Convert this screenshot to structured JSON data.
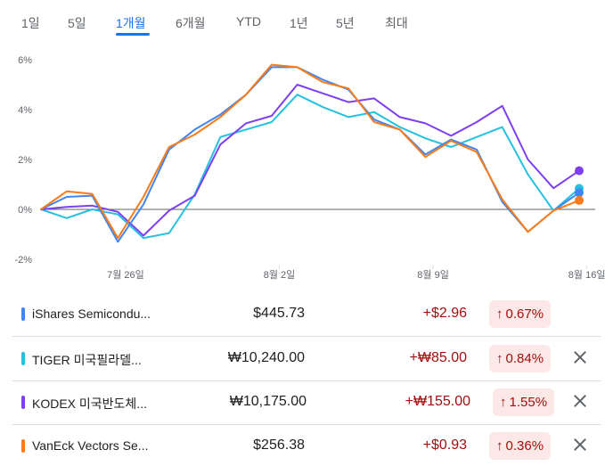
{
  "tabs": [
    {
      "label": "1일",
      "active": false
    },
    {
      "label": "5일",
      "active": false
    },
    {
      "label": "1개월",
      "active": true
    },
    {
      "label": "6개월",
      "active": false
    },
    {
      "label": "YTD",
      "active": false
    },
    {
      "label": "1년",
      "active": false
    },
    {
      "label": "5년",
      "active": false
    },
    {
      "label": "최대",
      "active": false
    }
  ],
  "chart_data": {
    "type": "line",
    "ylim": [
      -2,
      6
    ],
    "yticks": [
      6,
      4,
      2,
      0,
      -2
    ],
    "ytick_labels": [
      "6%",
      "4%",
      "2%",
      "0%",
      "-2%"
    ],
    "xtick_labels": [
      "7월 26일",
      "8월 2일",
      "8월 9일",
      "8월 16일"
    ],
    "xtick_index": [
      3.3,
      9.3,
      15.3,
      21.3
    ],
    "zero_line": true,
    "series": [
      {
        "name": "iShares Semiconductor ETF",
        "color": "#4285f4",
        "values": [
          0,
          0.5,
          0.55,
          -1.3,
          0.2,
          2.4,
          3.2,
          3.8,
          4.6,
          5.7,
          5.7,
          5.2,
          4.8,
          3.6,
          3.2,
          2.2,
          2.8,
          2.4,
          0.3,
          -0.9,
          -0.05,
          0.67
        ]
      },
      {
        "name": "TIGER 미국필라델피아반도체나스닥",
        "color": "#24c1e0",
        "values": [
          0,
          -0.35,
          0,
          -0.2,
          -1.15,
          -0.95,
          0.6,
          2.9,
          3.2,
          3.5,
          4.6,
          4.1,
          3.7,
          3.9,
          3.3,
          2.85,
          2.5,
          2.9,
          3.3,
          1.4,
          -0.05,
          0.84
        ]
      },
      {
        "name": "KODEX 미국반도체MV",
        "color": "#7e3ff2",
        "values": [
          0,
          0.1,
          0.15,
          -0.1,
          -1.05,
          -0.05,
          0.55,
          2.6,
          3.45,
          3.75,
          5.0,
          4.65,
          4.3,
          4.45,
          3.7,
          3.45,
          2.95,
          3.5,
          4.15,
          2.0,
          0.85,
          1.55
        ]
      },
      {
        "name": "VanEck Vectors Semiconductor ETF",
        "color": "#fa7b17",
        "values": [
          0,
          0.72,
          0.62,
          -1.15,
          0.5,
          2.5,
          3.0,
          3.7,
          4.6,
          5.8,
          5.7,
          5.1,
          4.85,
          3.5,
          3.2,
          2.1,
          2.75,
          2.3,
          0.4,
          -0.9,
          -0.05,
          0.36
        ]
      }
    ]
  },
  "rows": [
    {
      "name": "iShares Semicondu...",
      "color": "#4285f4",
      "price": "$445.73",
      "change": "+$2.96",
      "arrow": "↑",
      "pct": "0.67%",
      "removable": false
    },
    {
      "name": "TIGER 미국필라델...",
      "color": "#24c1e0",
      "price": "₩10,240.00",
      "change": "+₩85.00",
      "arrow": "↑",
      "pct": "0.84%",
      "removable": true
    },
    {
      "name": "KODEX 미국반도체...",
      "color": "#7e3ff2",
      "price": "₩10,175.00",
      "change": "+₩155.00",
      "arrow": "↑",
      "pct": "1.55%",
      "removable": true
    },
    {
      "name": "VanEck Vectors Se...",
      "color": "#fa7b17",
      "price": "$256.38",
      "change": "+$0.93",
      "arrow": "↑",
      "pct": "0.36%",
      "removable": true
    }
  ]
}
